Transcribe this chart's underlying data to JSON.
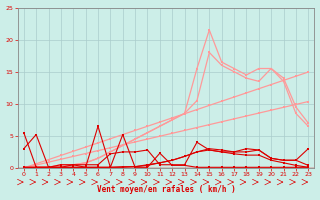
{
  "x": [
    0,
    1,
    2,
    3,
    4,
    5,
    6,
    7,
    8,
    9,
    10,
    11,
    12,
    13,
    14,
    15,
    16,
    17,
    18,
    19,
    20,
    21,
    22,
    23
  ],
  "line_spike1": [
    5.5,
    0.1,
    0.1,
    0.1,
    0.5,
    0.1,
    6.5,
    0.1,
    5.2,
    0.1,
    0.1,
    2.3,
    0.4,
    0.4,
    0.1,
    0.1,
    0.1,
    0.1,
    0.1,
    0.1,
    0.1,
    0.1,
    0.1,
    0.1
  ],
  "line_mid1": [
    3.0,
    5.2,
    0.1,
    0.5,
    0.5,
    0.5,
    0.5,
    2.2,
    2.5,
    2.5,
    2.8,
    0.5,
    0.5,
    0.5,
    4.0,
    2.8,
    2.5,
    2.5,
    3.0,
    2.8,
    1.5,
    1.2,
    1.2,
    3.0
  ],
  "line_low1": [
    0.1,
    0.1,
    0.1,
    0.1,
    0.1,
    0.1,
    0.1,
    0.1,
    0.2,
    0.2,
    0.5,
    0.8,
    1.2,
    1.8,
    2.5,
    3.0,
    2.8,
    2.5,
    2.5,
    2.8,
    1.5,
    1.2,
    1.2,
    0.4
  ],
  "line_low2": [
    0.1,
    0.1,
    0.1,
    0.1,
    0.1,
    0.1,
    0.1,
    0.1,
    0.1,
    0.2,
    0.4,
    0.8,
    1.2,
    1.8,
    2.5,
    2.8,
    2.5,
    2.2,
    2.0,
    2.0,
    1.2,
    0.8,
    0.4,
    0.1
  ],
  "line_light_upper": [
    0.1,
    0.1,
    0.1,
    0.5,
    0.5,
    0.8,
    1.5,
    2.5,
    3.5,
    4.5,
    5.5,
    6.5,
    7.5,
    8.5,
    15.5,
    21.5,
    16.5,
    15.5,
    14.5,
    15.5,
    15.5,
    14.0,
    9.5,
    7.0
  ],
  "line_light_lower": [
    0.1,
    0.1,
    0.1,
    0.5,
    0.5,
    0.8,
    1.5,
    2.5,
    3.5,
    4.5,
    5.5,
    6.5,
    7.5,
    8.5,
    10.5,
    18.0,
    16.0,
    15.0,
    14.0,
    13.5,
    15.5,
    13.5,
    8.5,
    6.5
  ],
  "line_linear1": [
    0.0,
    0.65,
    1.3,
    1.95,
    2.6,
    3.25,
    3.9,
    4.55,
    5.2,
    5.85,
    6.5,
    7.15,
    7.8,
    8.45,
    9.1,
    9.75,
    10.4,
    11.05,
    11.7,
    12.35,
    13.0,
    13.65,
    14.3,
    14.95
  ],
  "line_linear2": [
    0.0,
    0.45,
    0.9,
    1.35,
    1.8,
    2.25,
    2.7,
    3.15,
    3.6,
    4.05,
    4.5,
    4.95,
    5.4,
    5.85,
    6.3,
    6.75,
    7.2,
    7.65,
    8.1,
    8.55,
    9.0,
    9.45,
    9.9,
    10.35
  ],
  "xlabel": "Vent moyen/en rafales ( km/h )",
  "ylim": [
    0,
    25
  ],
  "xlim": [
    -0.5,
    23.5
  ],
  "yticks": [
    0,
    5,
    10,
    15,
    20,
    25
  ],
  "xticks": [
    0,
    1,
    2,
    3,
    4,
    5,
    6,
    7,
    8,
    9,
    10,
    11,
    12,
    13,
    14,
    15,
    16,
    17,
    18,
    19,
    20,
    21,
    22,
    23
  ],
  "bg_color": "#cceee8",
  "grid_color": "#aacccc",
  "line_color_dark": "#dd0000",
  "line_color_light": "#ff9999",
  "marker_size": 2.0
}
